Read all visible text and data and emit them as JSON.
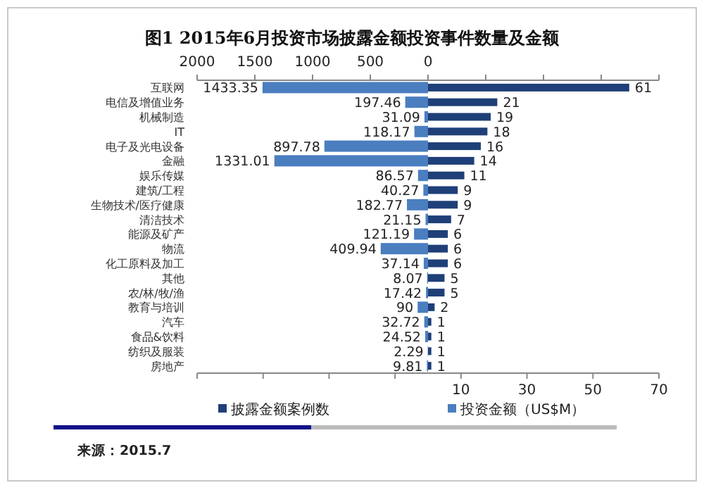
{
  "chart_data": {
    "type": "bar",
    "orientation": "horizontal",
    "title": "图1 2015年6月投资市场披露金额投资事件数量及金额",
    "categories": [
      "互联网",
      "电信及增值业务",
      "机械制造",
      "IT",
      "电子及光电设备",
      "金融",
      "娱乐传媒",
      "建筑/工程",
      "生物技术/医疗健康",
      "清洁技术",
      "能源及矿产",
      "物流",
      "化工原料及加工",
      "其他",
      "农/林/牧/渔",
      "教育与培训",
      "汽车",
      "食品&饮料",
      "纺织及服装",
      "房地产"
    ],
    "series": [
      {
        "name": "投资金额（US$M）",
        "color": "#4a7ebf",
        "axis": "x2",
        "values": [
          1433.35,
          197.46,
          31.09,
          118.17,
          897.78,
          1331.01,
          86.57,
          40.27,
          182.77,
          21.15,
          121.19,
          409.94,
          37.14,
          8.07,
          17.42,
          90,
          32.72,
          24.52,
          2.29,
          9.81
        ]
      },
      {
        "name": "披露金额案例数",
        "color": "#1f3f78",
        "values": [
          61,
          21,
          19,
          18,
          16,
          14,
          11,
          9,
          9,
          7,
          6,
          6,
          6,
          5,
          5,
          2,
          1,
          1,
          1,
          1
        ]
      }
    ],
    "xlim": [
      -70,
      70
    ],
    "xticks": [
      {
        "value": -70,
        "label": null
      },
      {
        "value": -50,
        "label": null
      },
      {
        "value": -30,
        "label": null
      },
      {
        "value": -10,
        "label": null
      },
      10,
      30,
      50,
      70
    ],
    "x2lim": [
      2000,
      -2000
    ],
    "x2ticks": [
      2000,
      1500,
      1000,
      500,
      0,
      {
        "value": -500,
        "label": null
      },
      {
        "value": -1000,
        "label": null
      },
      {
        "value": -1500,
        "label": null
      },
      {
        "value": -2000,
        "label": null
      }
    ],
    "data_labels": true,
    "legend": "bottom",
    "annotations": [
      "来源：2015.7"
    ]
  }
}
